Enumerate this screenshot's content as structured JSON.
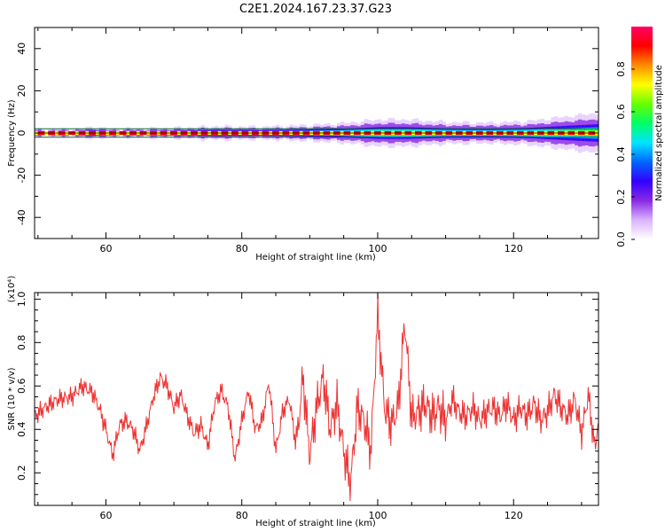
{
  "title": "C2E1.2024.167.23.37.G23",
  "chart_data": [
    {
      "id": "spectrogram",
      "type": "heatmap",
      "title": "",
      "xlabel": "Height of straight line (km)",
      "ylabel": "Frequency (Hz)",
      "xlim": [
        49.5,
        132.5
      ],
      "ylim": [
        -50,
        50
      ],
      "xticks": [
        60,
        80,
        100,
        120
      ],
      "yticks": [
        -40,
        -20,
        0,
        20,
        40
      ],
      "colorbar": {
        "label": "Normalized spectral amplitude",
        "range": [
          0,
          1
        ],
        "ticks": [
          "0.0",
          "0.2",
          "0.4",
          "0.6",
          "0.8"
        ],
        "colormap": [
          "#ffffff",
          "#d9b3ff",
          "#8a2be2",
          "#3300ff",
          "#0066ff",
          "#00e5ff",
          "#00ff66",
          "#66ff00",
          "#ffff00",
          "#ff8c00",
          "#ff0000",
          "#ff0066"
        ]
      },
      "reference_lines_hz": [
        2,
        -2
      ],
      "main_line_hz": 0,
      "spread_profile": [
        {
          "x": 49.5,
          "spread_hz": 1.0
        },
        {
          "x": 56,
          "spread_hz": 1.2
        },
        {
          "x": 58,
          "spread_hz": 1.8
        },
        {
          "x": 60,
          "spread_hz": 1.2
        },
        {
          "x": 66,
          "spread_hz": 1.3
        },
        {
          "x": 72,
          "spread_hz": 1.6
        },
        {
          "x": 76,
          "spread_hz": 2.0
        },
        {
          "x": 82,
          "spread_hz": 1.8
        },
        {
          "x": 88,
          "spread_hz": 2.2
        },
        {
          "x": 94,
          "spread_hz": 2.8
        },
        {
          "x": 100,
          "spread_hz": 4.0
        },
        {
          "x": 104,
          "spread_hz": 4.0
        },
        {
          "x": 110,
          "spread_hz": 3.2
        },
        {
          "x": 116,
          "spread_hz": 3.0
        },
        {
          "x": 122,
          "spread_hz": 3.5
        },
        {
          "x": 128,
          "spread_hz": 5.0
        },
        {
          "x": 132.5,
          "spread_hz": 6.0
        }
      ]
    },
    {
      "id": "snr",
      "type": "line",
      "title": "",
      "xlabel": "Height of straight line (km)",
      "ylabel": "SNR (10 * v/v)",
      "y_multiplier": "(x10⁴)",
      "color": "#ee3333",
      "xlim": [
        49.5,
        132.5
      ],
      "ylim": [
        0.05,
        1.03
      ],
      "xticks": [
        60,
        80,
        100,
        120
      ],
      "yticks": [
        0.2,
        0.4,
        0.6,
        0.8,
        1.0
      ],
      "series": [
        {
          "x": [
            49.5,
            51,
            53,
            55,
            56.5,
            58,
            59,
            60,
            61,
            62,
            63,
            64,
            65,
            66,
            67,
            68,
            69,
            70,
            71,
            72,
            73,
            74,
            75,
            76,
            77,
            78,
            79,
            80,
            81,
            82,
            83,
            84,
            85,
            86,
            87,
            88,
            89,
            90,
            91,
            92,
            93,
            94,
            95,
            96,
            97,
            98,
            99,
            100,
            101,
            102,
            103,
            104,
            105,
            106,
            107,
            108,
            109,
            110,
            111,
            112,
            113,
            114,
            115,
            116,
            117,
            118,
            119,
            120,
            121,
            122,
            123,
            124,
            125,
            126,
            127,
            128,
            129,
            130,
            131,
            132,
            132.5
          ],
          "y": [
            0.46,
            0.5,
            0.54,
            0.55,
            0.6,
            0.57,
            0.5,
            0.4,
            0.28,
            0.42,
            0.44,
            0.4,
            0.3,
            0.42,
            0.55,
            0.64,
            0.6,
            0.5,
            0.56,
            0.46,
            0.38,
            0.42,
            0.32,
            0.52,
            0.58,
            0.5,
            0.26,
            0.44,
            0.58,
            0.4,
            0.44,
            0.62,
            0.3,
            0.48,
            0.54,
            0.32,
            0.64,
            0.28,
            0.5,
            0.64,
            0.4,
            0.52,
            0.3,
            0.15,
            0.5,
            0.44,
            0.3,
            0.93,
            0.5,
            0.42,
            0.5,
            0.9,
            0.45,
            0.48,
            0.52,
            0.46,
            0.5,
            0.44,
            0.54,
            0.48,
            0.46,
            0.5,
            0.44,
            0.48,
            0.5,
            0.46,
            0.52,
            0.44,
            0.5,
            0.46,
            0.52,
            0.44,
            0.48,
            0.56,
            0.5,
            0.46,
            0.54,
            0.38,
            0.56,
            0.3,
            0.48
          ]
        }
      ]
    }
  ]
}
